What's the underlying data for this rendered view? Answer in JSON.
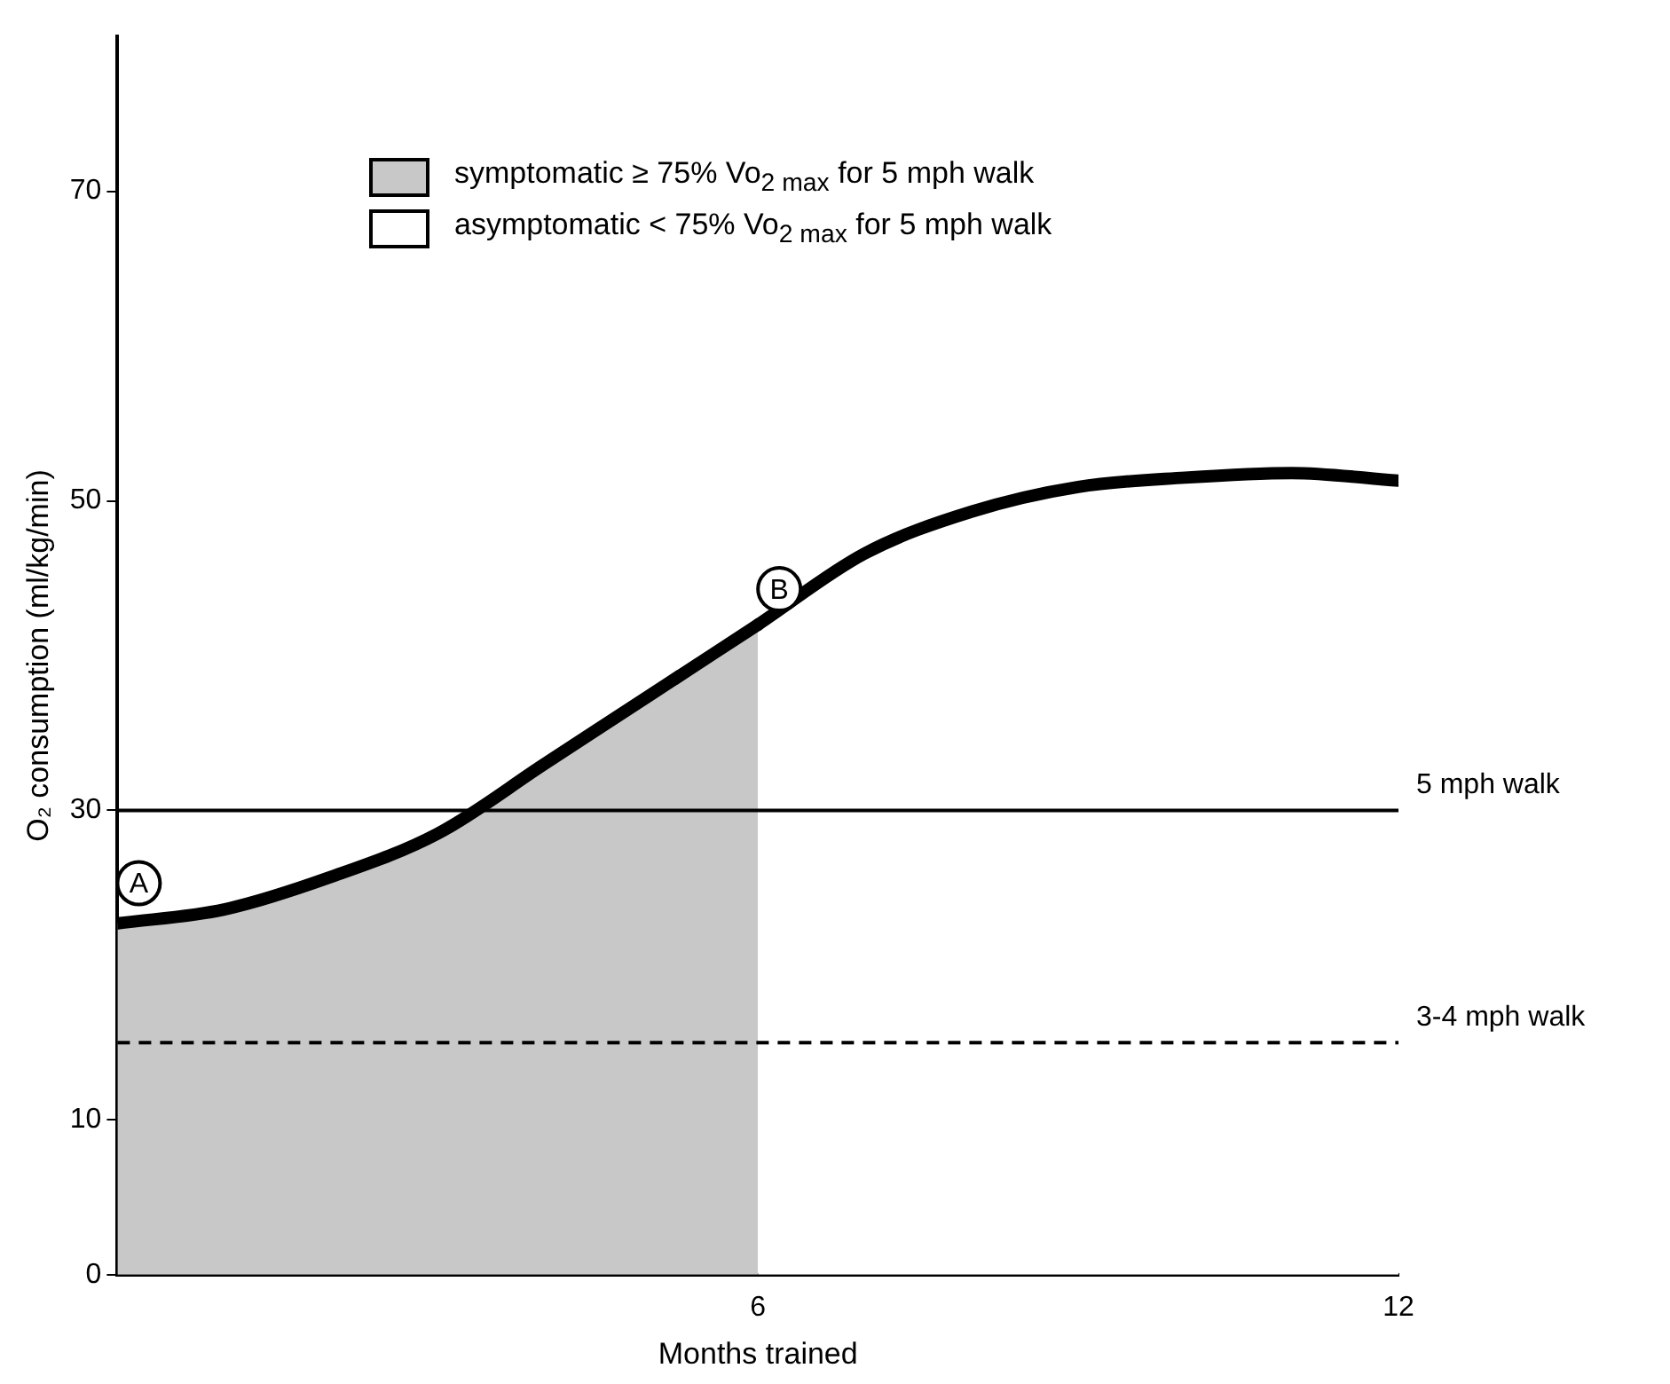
{
  "chart_data": {
    "type": "area",
    "xlabel": "Months trained",
    "ylabel": "O₂ consumption (ml/kg/min)",
    "series": [
      {
        "name": "symptomatic ≥ 75% Vo$_{2 max}$ for 5 mph walk",
        "color": "#c8c8c8",
        "x": [
          0,
          1,
          2,
          3,
          4,
          5,
          6
        ],
        "values": [
          22.7,
          23.6,
          25.7,
          28.5,
          33,
          37.5,
          42
        ]
      },
      {
        "name": "asymptomatic < 75% Vo$_{2 max}$ for 5 mph walk",
        "color": "#ffffff",
        "x": [
          6,
          7,
          8,
          9,
          10,
          11,
          12
        ],
        "values": [
          42,
          46.6,
          49.3,
          50.9,
          51.5,
          51.8,
          51.3
        ]
      }
    ],
    "xlim": [
      0,
      12
    ],
    "xticks": [
      {
        "value": 0,
        "label": null
      },
      6,
      12
    ],
    "ylim": [
      0,
      80
    ],
    "yticks": [
      0,
      10,
      30,
      50,
      70
    ],
    "grid": false,
    "legend": "top left",
    "ref_lines": [
      {
        "axis": "y",
        "value": 30,
        "label": "5 mph walk"
      },
      {
        "axis": "y",
        "value": 15,
        "label": "3-4 mph walk",
        "line_style": "dashed"
      }
    ],
    "annotations": [
      {
        "text": "A",
        "x": 0,
        "y": 23
      },
      {
        "text": "B",
        "x": 6,
        "y": 42
      }
    ]
  }
}
